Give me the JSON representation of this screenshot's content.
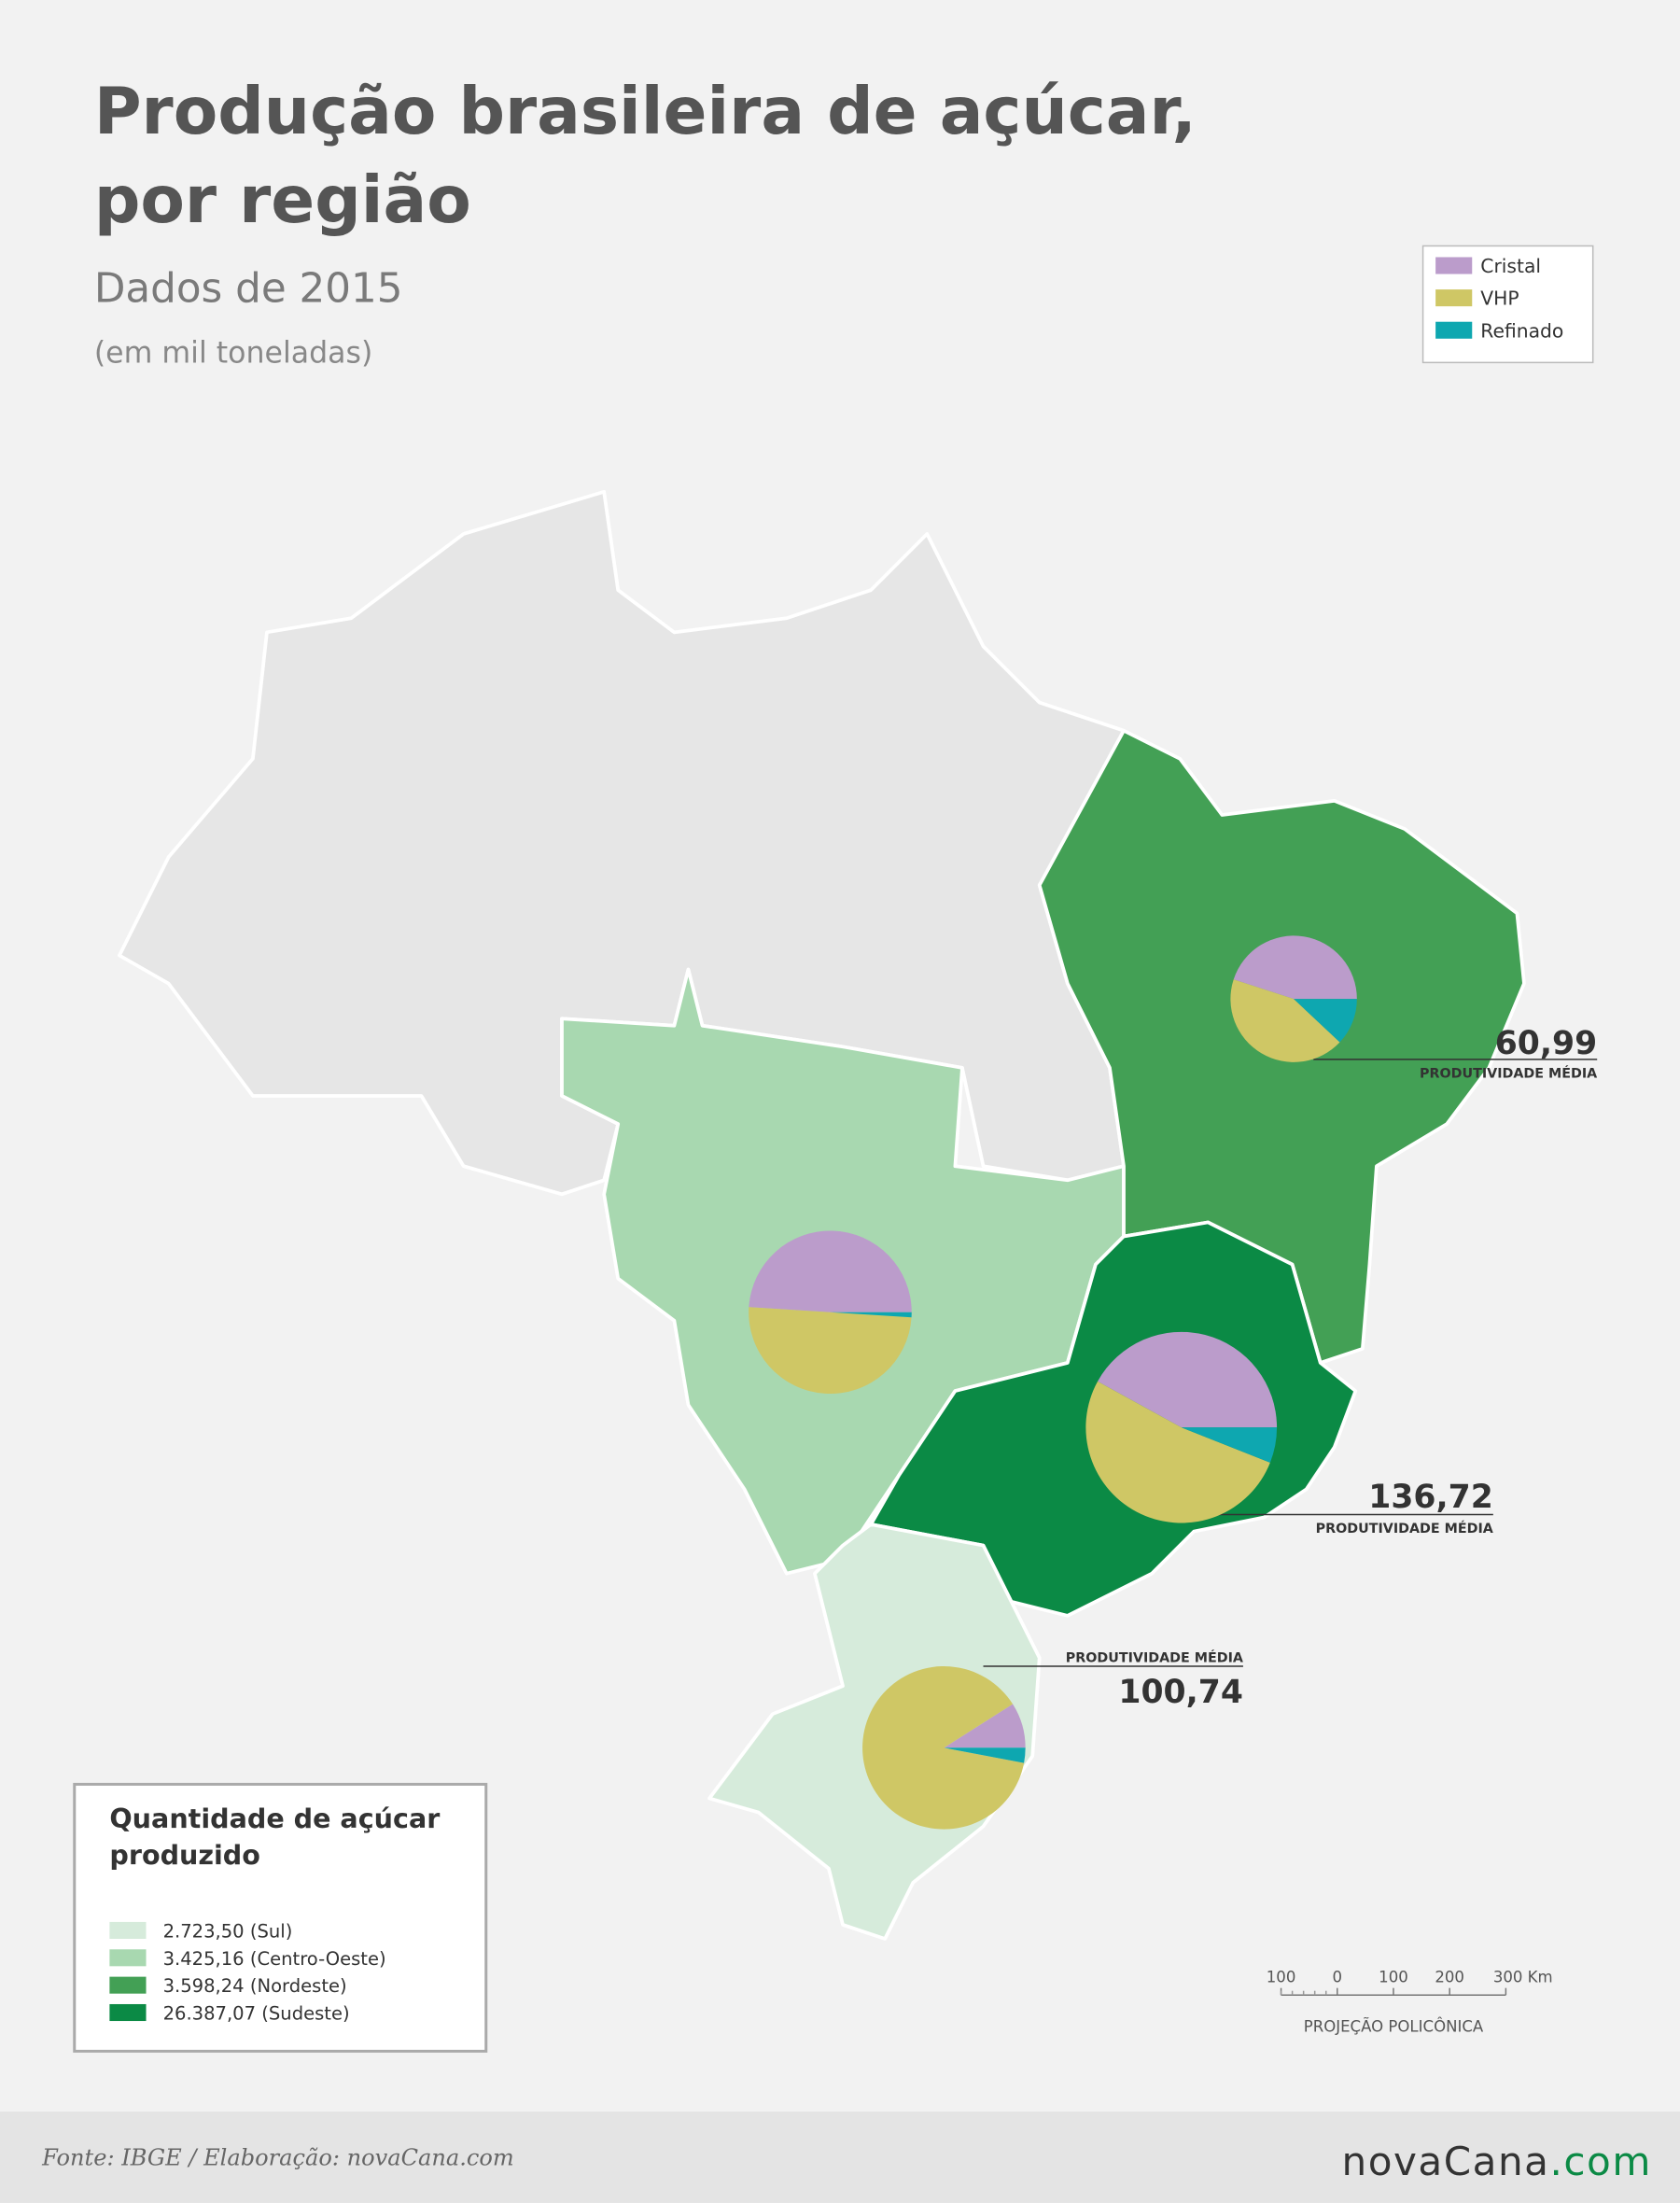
{
  "header": {
    "title_lines": [
      "Produção brasileira de açúcar,",
      "por região"
    ],
    "subtitle": "Dados de 2015",
    "unit_note": "(em mil toneladas)"
  },
  "legend": {
    "items": [
      {
        "name": "Cristal",
        "color": "#bb9ccb"
      },
      {
        "name": "VHP",
        "color": "#cfc765"
      },
      {
        "name": "Refinado",
        "color": "#0ea7b0"
      }
    ]
  },
  "pies": [
    {
      "values": [
        45,
        43,
        12
      ]
    },
    {
      "values": [
        49,
        50,
        1
      ]
    },
    {
      "values": [
        42,
        52,
        6
      ]
    },
    {
      "values": [
        9,
        88,
        3
      ]
    }
  ],
  "productivity": [
    {
      "value": "60,99",
      "label": "PRODUTIVIDADE MÉDIA"
    },
    {
      "value": "136,72",
      "label": "PRODUTIVIDADE MÉDIA"
    },
    {
      "value": "100,74",
      "label": "PRODUTIVIDADE MÉDIA"
    }
  ],
  "quantity_legend": {
    "title_lines": [
      "Quantidade de açúcar",
      "produzido"
    ],
    "items": [
      {
        "label": "2.723,50 (Sul)",
        "color": "#d6ebdb"
      },
      {
        "label": "3.425,16 (Centro-Oeste)",
        "color": "#a8d8b0"
      },
      {
        "label": "3.598,24 (Nordeste)",
        "color": "#43a055"
      },
      {
        "label": "26.387,07 (Sudeste)",
        "color": "#0b8a45"
      }
    ]
  },
  "scale_bar": {
    "labels": [
      "100",
      "0",
      "100",
      "200",
      "300 Km"
    ],
    "projection": "PROJEÇÃO POLICÔNICA"
  },
  "footer": {
    "source": "Fonte: IBGE / Elaboração: novaCana.com",
    "logo_name": "novaCana",
    "logo_domain": ".com"
  }
}
